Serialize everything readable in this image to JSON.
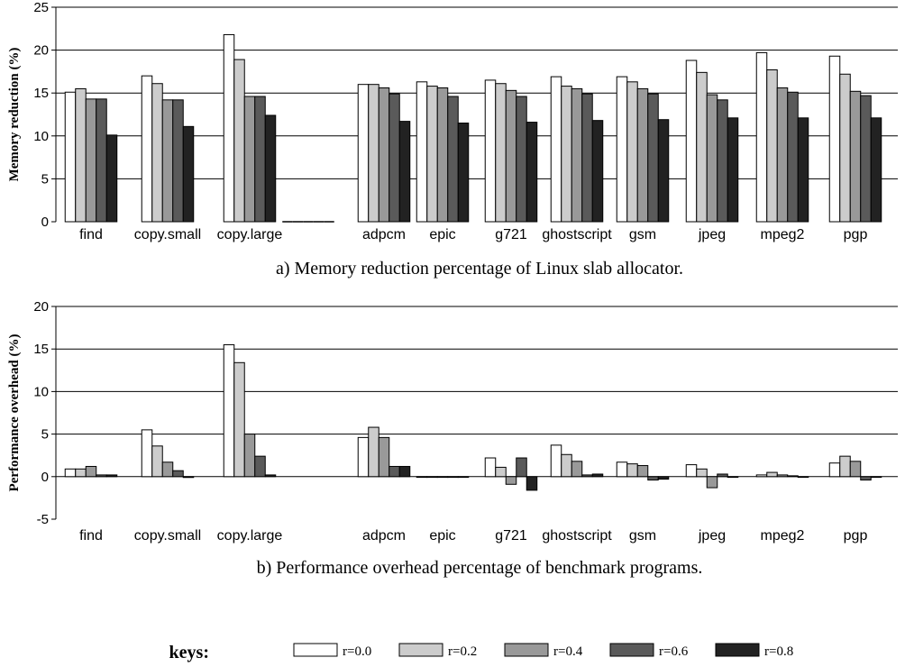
{
  "chart_data": [
    {
      "type": "bar",
      "title": "a) Memory reduction percentage of Linux slab allocator.",
      "ylabel": "Memory reduction (%)",
      "xlabel": "",
      "ylim": [
        0,
        25
      ],
      "yticks": [
        0,
        5,
        10,
        15,
        20,
        25
      ],
      "grid": "horizontal",
      "categories": [
        "find",
        "copy.small",
        "copy.large",
        "",
        "adpcm",
        "epic",
        "g721",
        "ghostscript",
        "gsm",
        "jpeg",
        "mpeg2",
        "pgp"
      ],
      "series": [
        {
          "name": "r=0.0",
          "values": [
            15.1,
            17.0,
            21.8,
            0,
            16.0,
            16.3,
            16.5,
            16.9,
            16.9,
            18.8,
            19.7,
            19.3
          ]
        },
        {
          "name": "r=0.2",
          "values": [
            15.5,
            16.1,
            18.9,
            0,
            16.0,
            15.8,
            16.1,
            15.8,
            16.3,
            17.4,
            17.7,
            17.2
          ]
        },
        {
          "name": "r=0.4",
          "values": [
            14.3,
            14.2,
            14.6,
            0,
            15.6,
            15.6,
            15.3,
            15.5,
            15.5,
            14.8,
            15.6,
            15.2
          ]
        },
        {
          "name": "r=0.6",
          "values": [
            14.3,
            14.2,
            14.6,
            0,
            14.9,
            14.6,
            14.6,
            14.9,
            14.9,
            14.2,
            15.1,
            14.7
          ]
        },
        {
          "name": "r=0.8",
          "values": [
            10.1,
            11.1,
            12.4,
            0,
            11.7,
            11.5,
            11.6,
            11.8,
            11.9,
            12.1,
            12.1,
            12.1
          ]
        }
      ]
    },
    {
      "type": "bar",
      "title": "b) Performance overhead percentage of benchmark programs.",
      "ylabel": "Performance overhead (%)",
      "xlabel": "",
      "ylim": [
        -5,
        20
      ],
      "yticks": [
        -5,
        0,
        5,
        10,
        15,
        20
      ],
      "grid": "horizontal",
      "categories": [
        "find",
        "copy.small",
        "copy.large",
        "",
        "adpcm",
        "epic",
        "g721",
        "ghostscript",
        "gsm",
        "jpeg",
        "mpeg2",
        "pgp"
      ],
      "series": [
        {
          "name": "r=0.0",
          "values": [
            0.9,
            5.5,
            15.5,
            0,
            4.6,
            0,
            2.2,
            3.7,
            1.7,
            1.4,
            0.2,
            1.6
          ]
        },
        {
          "name": "r=0.2",
          "values": [
            0.9,
            3.6,
            13.4,
            0,
            5.8,
            0,
            1.1,
            2.6,
            1.5,
            0.9,
            0.5,
            2.4
          ]
        },
        {
          "name": "r=0.4",
          "values": [
            1.2,
            1.7,
            5.0,
            0,
            4.6,
            0,
            -0.9,
            1.8,
            1.3,
            -1.3,
            0.2,
            1.8
          ]
        },
        {
          "name": "r=0.6",
          "values": [
            0.2,
            0.7,
            2.4,
            0,
            1.2,
            0,
            2.2,
            0.2,
            -0.4,
            0.3,
            0.1,
            -0.4
          ]
        },
        {
          "name": "r=0.8",
          "values": [
            0.2,
            -0.1,
            0.2,
            0,
            1.2,
            0,
            -1.6,
            0.3,
            -0.3,
            0.0,
            0.0,
            0.0
          ]
        }
      ]
    }
  ],
  "legend": {
    "title": "keys:",
    "entries": [
      {
        "label": "r=0.0",
        "color": "#ffffff"
      },
      {
        "label": "r=0.2",
        "color": "#cccccc"
      },
      {
        "label": "r=0.4",
        "color": "#999999"
      },
      {
        "label": "r=0.6",
        "color": "#5a5a5a"
      },
      {
        "label": "r=0.8",
        "color": "#222222"
      }
    ]
  }
}
